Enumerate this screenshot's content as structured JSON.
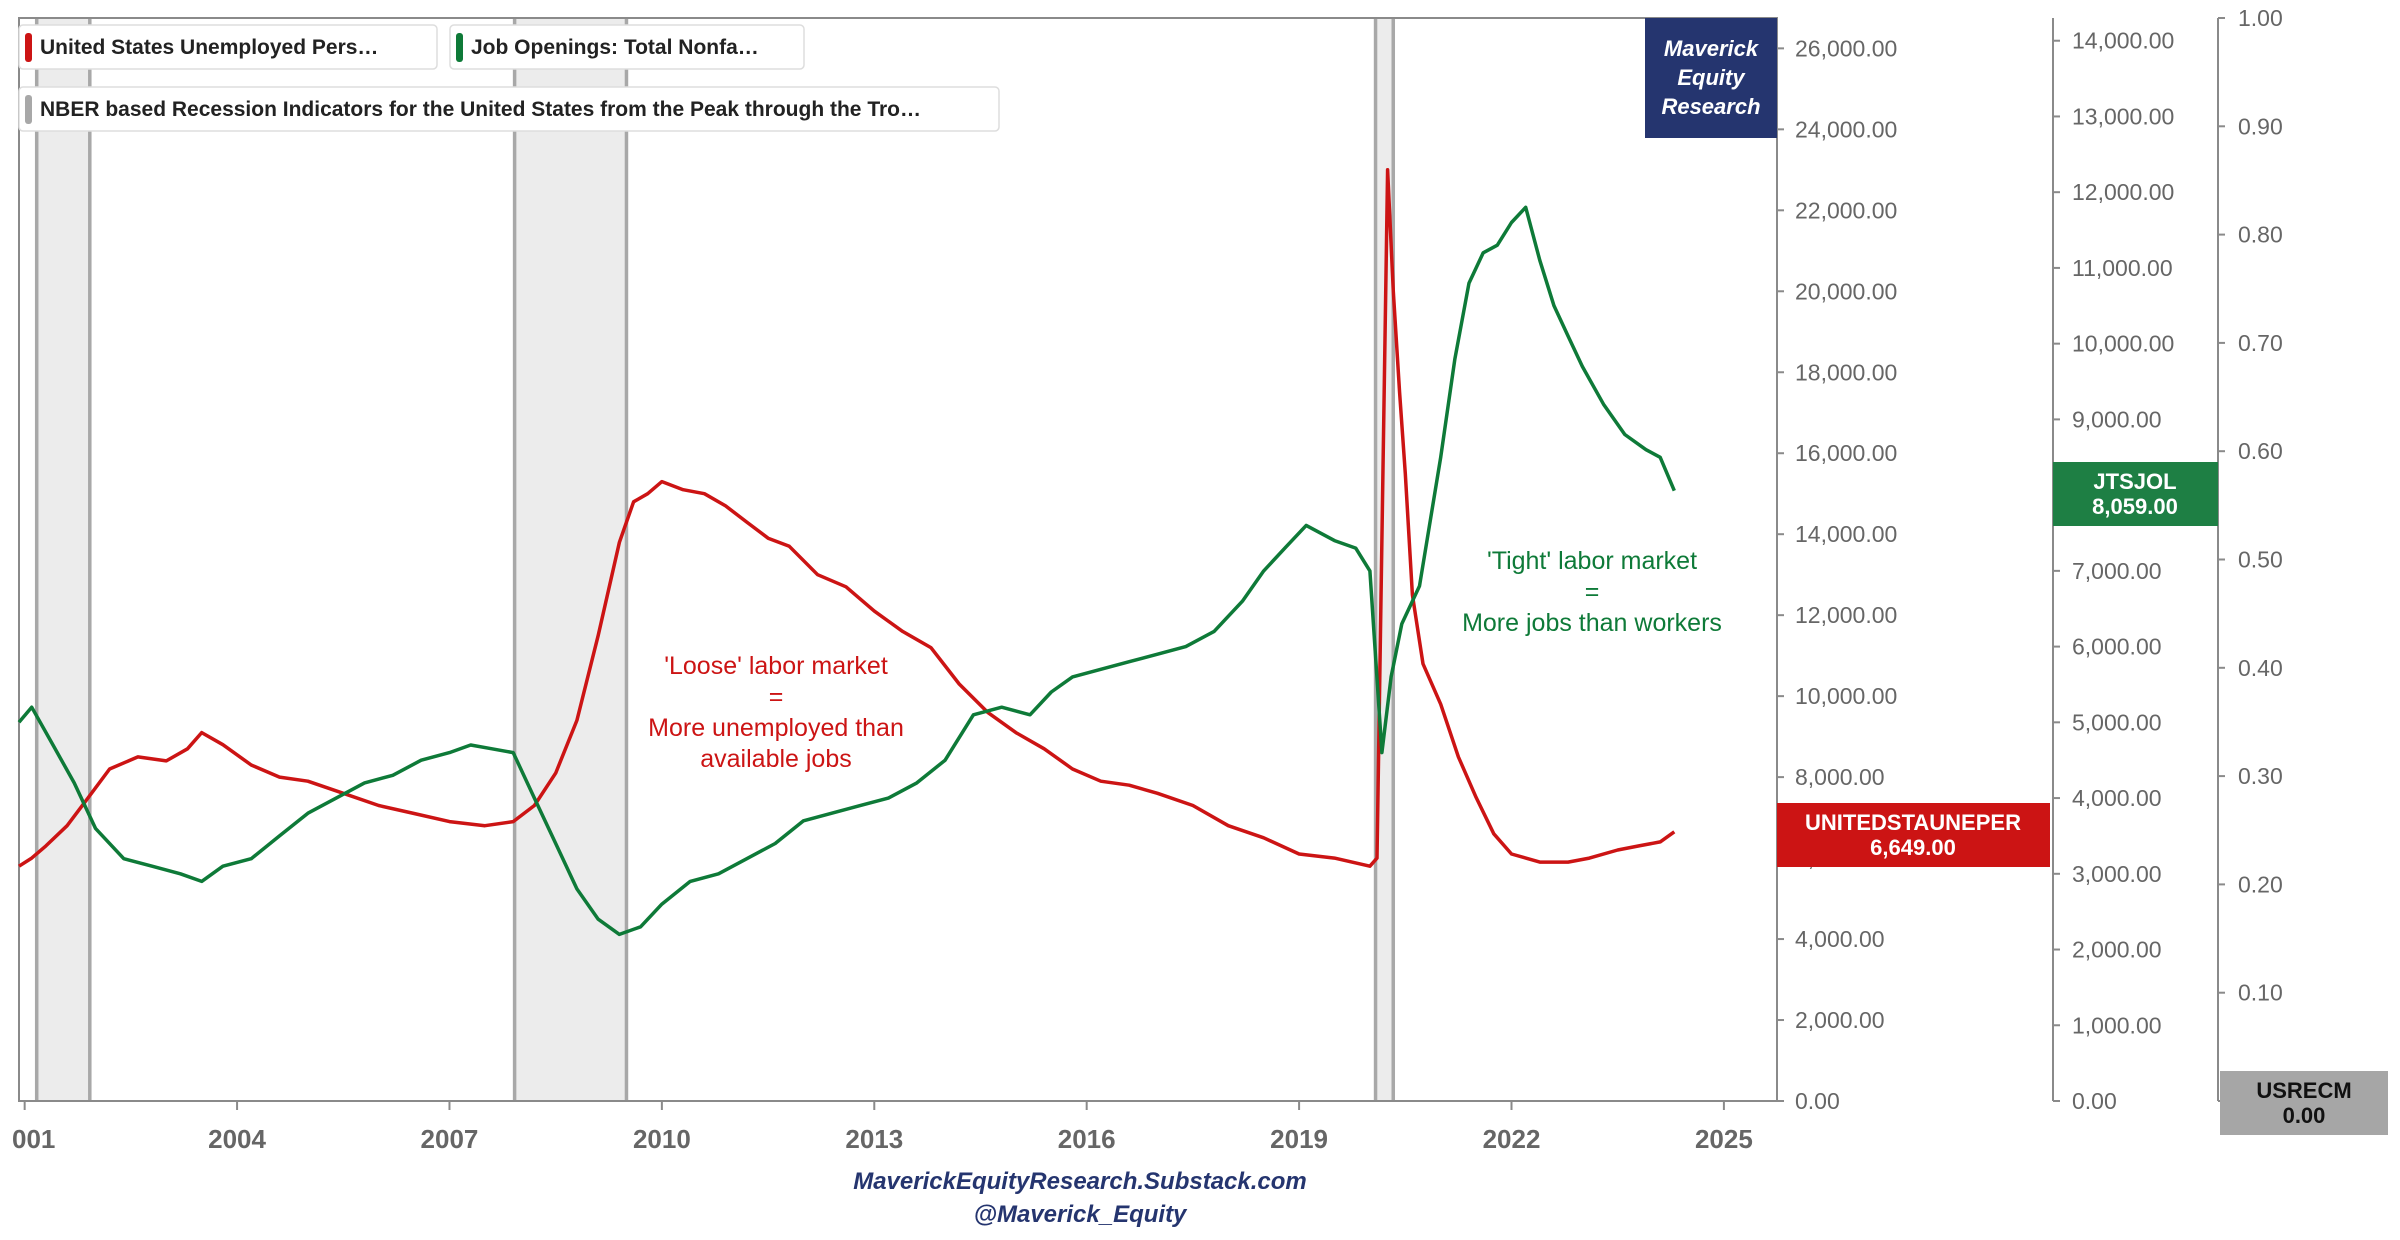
{
  "legend": {
    "unemployed": "United States Unemployed Pers…",
    "openings": "Job Openings: Total Nonfa…",
    "recession": "NBER based Recession Indicators for the United States from the Peak through the Tro…"
  },
  "brand": {
    "line1": "Maverick",
    "line2": "Equity",
    "line3": "Research"
  },
  "footer": {
    "site": "MaverickEquityResearch.Substack.com",
    "handle": "@Maverick_Equity"
  },
  "annotations": {
    "loose": [
      "'Loose' labor market",
      "=",
      "More unemployed than",
      "available jobs"
    ],
    "tight": [
      "'Tight' labor market",
      "=",
      "More jobs than workers"
    ]
  },
  "flags": {
    "unemployed": {
      "name": "UNITEDSTAUNEPER",
      "value": "6,649.00"
    },
    "openings": {
      "name": "JTSJOL",
      "value": "8,059.00"
    },
    "recession": {
      "name": "USRECM",
      "value": "0.00"
    }
  },
  "colors": {
    "unemployed": "#cc1414",
    "openings": "#0e7a38",
    "recession_fill": "#ececec",
    "recession_edge": "#a8a8a8",
    "brand": "#25356f",
    "recession_flag": "#a6a6a6",
    "axis": "#8a8a8a"
  },
  "chart_data": {
    "type": "line",
    "x_ticks": [
      "001",
      "2004",
      "2007",
      "2010",
      "2013",
      "2016",
      "2019",
      "2022",
      "2025"
    ],
    "xlim": [
      2000.92,
      2025.75
    ],
    "axes": {
      "unemployed": {
        "ylim": [
          0,
          26750
        ],
        "ticks": [
          "0.00",
          "2,000.00",
          "4,000.00",
          "6,000.00",
          "8,000.00",
          "10,000.00",
          "12,000.00",
          "14,000.00",
          "16,000.00",
          "18,000.00",
          "20,000.00",
          "22,000.00",
          "24,000.00",
          "26,000.00"
        ]
      },
      "openings": {
        "ylim": [
          0,
          14300
        ],
        "ticks": [
          "0.00",
          "1,000.00",
          "2,000.00",
          "3,000.00",
          "4,000.00",
          "5,000.00",
          "6,000.00",
          "7,000.00",
          "8,000.00",
          "9,000.00",
          "10,000.00",
          "11,000.00",
          "12,000.00",
          "13,000.00",
          "14,000.00"
        ]
      },
      "recession": {
        "ylim": [
          0,
          1.0
        ],
        "ticks": [
          "0.00",
          "0.10",
          "0.20",
          "0.30",
          "0.40",
          "0.50",
          "0.60",
          "0.70",
          "0.80",
          "0.90",
          "1.00"
        ]
      }
    },
    "recessions": [
      [
        2001.17,
        2001.92
      ],
      [
        2007.92,
        2009.5
      ],
      [
        2020.08,
        2020.33
      ]
    ],
    "series": [
      {
        "name": "United States Unemployed Pers…",
        "axis": "unemployed",
        "x": [
          2000.92,
          2001.1,
          2001.3,
          2001.6,
          2001.9,
          2002.2,
          2002.6,
          2003.0,
          2003.3,
          2003.5,
          2003.8,
          2004.2,
          2004.6,
          2005.0,
          2005.5,
          2006.0,
          2006.5,
          2007.0,
          2007.5,
          2007.9,
          2008.2,
          2008.5,
          2008.8,
          2009.1,
          2009.4,
          2009.6,
          2009.8,
          2010.0,
          2010.3,
          2010.6,
          2010.9,
          2011.2,
          2011.5,
          2011.8,
          2012.2,
          2012.6,
          2013.0,
          2013.4,
          2013.8,
          2014.2,
          2014.6,
          2015.0,
          2015.4,
          2015.8,
          2016.2,
          2016.6,
          2017.0,
          2017.5,
          2018.0,
          2018.5,
          2019.0,
          2019.5,
          2020.0,
          2020.1,
          2020.25,
          2020.33,
          2020.42,
          2020.5,
          2020.6,
          2020.75,
          2021.0,
          2021.25,
          2021.5,
          2021.75,
          2022.0,
          2022.4,
          2022.8,
          2023.1,
          2023.5,
          2023.8,
          2024.1,
          2024.3
        ],
        "values": [
          5800,
          6000,
          6300,
          6800,
          7500,
          8200,
          8500,
          8400,
          8700,
          9100,
          8800,
          8300,
          8000,
          7900,
          7600,
          7300,
          7100,
          6900,
          6800,
          6900,
          7300,
          8100,
          9400,
          11500,
          13800,
          14800,
          15000,
          15300,
          15100,
          15000,
          14700,
          14300,
          13900,
          13700,
          13000,
          12700,
          12100,
          11600,
          11200,
          10300,
          9600,
          9100,
          8700,
          8200,
          7900,
          7800,
          7600,
          7300,
          6800,
          6500,
          6100,
          6000,
          5800,
          6000,
          23000,
          20000,
          17500,
          15500,
          12500,
          10800,
          9800,
          8500,
          7500,
          6600,
          6100,
          5900,
          5900,
          6000,
          6200,
          6300,
          6400,
          6649
        ]
      },
      {
        "name": "Job Openings: Total Nonfa…",
        "axis": "openings",
        "x": [
          2000.92,
          2001.1,
          2001.4,
          2001.7,
          2002.0,
          2002.4,
          2002.8,
          2003.2,
          2003.5,
          2003.8,
          2004.2,
          2004.6,
          2005.0,
          2005.4,
          2005.8,
          2006.2,
          2006.6,
          2007.0,
          2007.3,
          2007.6,
          2007.9,
          2008.2,
          2008.5,
          2008.8,
          2009.1,
          2009.4,
          2009.7,
          2010.0,
          2010.4,
          2010.8,
          2011.2,
          2011.6,
          2012.0,
          2012.4,
          2012.8,
          2013.2,
          2013.6,
          2014.0,
          2014.4,
          2014.8,
          2015.2,
          2015.5,
          2015.8,
          2016.2,
          2016.6,
          2017.0,
          2017.4,
          2017.8,
          2018.2,
          2018.5,
          2018.8,
          2019.1,
          2019.5,
          2019.8,
          2020.0,
          2020.17,
          2020.3,
          2020.45,
          2020.7,
          2021.0,
          2021.2,
          2021.4,
          2021.6,
          2021.8,
          2022.0,
          2022.2,
          2022.4,
          2022.6,
          2022.8,
          2023.0,
          2023.3,
          2023.6,
          2023.9,
          2024.1,
          2024.3
        ],
        "values": [
          5000,
          5200,
          4700,
          4200,
          3600,
          3200,
          3100,
          3000,
          2900,
          3100,
          3200,
          3500,
          3800,
          4000,
          4200,
          4300,
          4500,
          4600,
          4700,
          4650,
          4600,
          4000,
          3400,
          2800,
          2400,
          2200,
          2300,
          2600,
          2900,
          3000,
          3200,
          3400,
          3700,
          3800,
          3900,
          4000,
          4200,
          4500,
          5100,
          5200,
          5100,
          5400,
          5600,
          5700,
          5800,
          5900,
          6000,
          6200,
          6600,
          7000,
          7300,
          7600,
          7400,
          7300,
          7000,
          4600,
          5600,
          6300,
          6800,
          8500,
          9800,
          10800,
          11200,
          11300,
          11600,
          11800,
          11100,
          10500,
          10100,
          9700,
          9200,
          8800,
          8600,
          8500,
          8059
        ]
      },
      {
        "name": "NBER based Recession Indicators for the United States from the Peak through the Tro…",
        "axis": "recession",
        "x": [
          2000.92,
          2001.17,
          2001.17,
          2001.92,
          2001.92,
          2007.92,
          2007.92,
          2009.5,
          2009.5,
          2020.08,
          2020.08,
          2020.33,
          2020.33,
          2024.3
        ],
        "values": [
          0,
          0,
          1,
          1,
          0,
          0,
          1,
          1,
          0,
          0,
          1,
          1,
          0,
          0
        ]
      }
    ]
  }
}
